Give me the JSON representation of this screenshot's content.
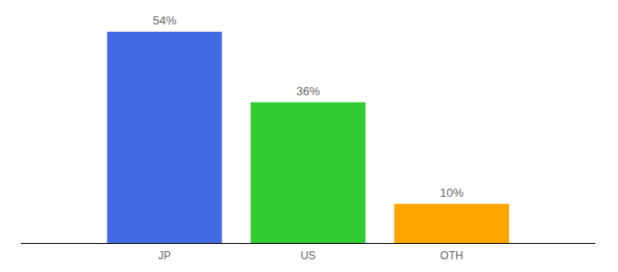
{
  "chart_data": {
    "type": "bar",
    "categories": [
      "JP",
      "US",
      "OTH"
    ],
    "values": [
      54,
      36,
      10
    ],
    "value_labels": [
      "54%",
      "36%",
      "10%"
    ],
    "colors": [
      "#4169e1",
      "#32cd32",
      "#ffa500"
    ],
    "ylim": [
      0,
      54
    ],
    "data_labels": true,
    "tick_labels": "x",
    "grid": false
  }
}
